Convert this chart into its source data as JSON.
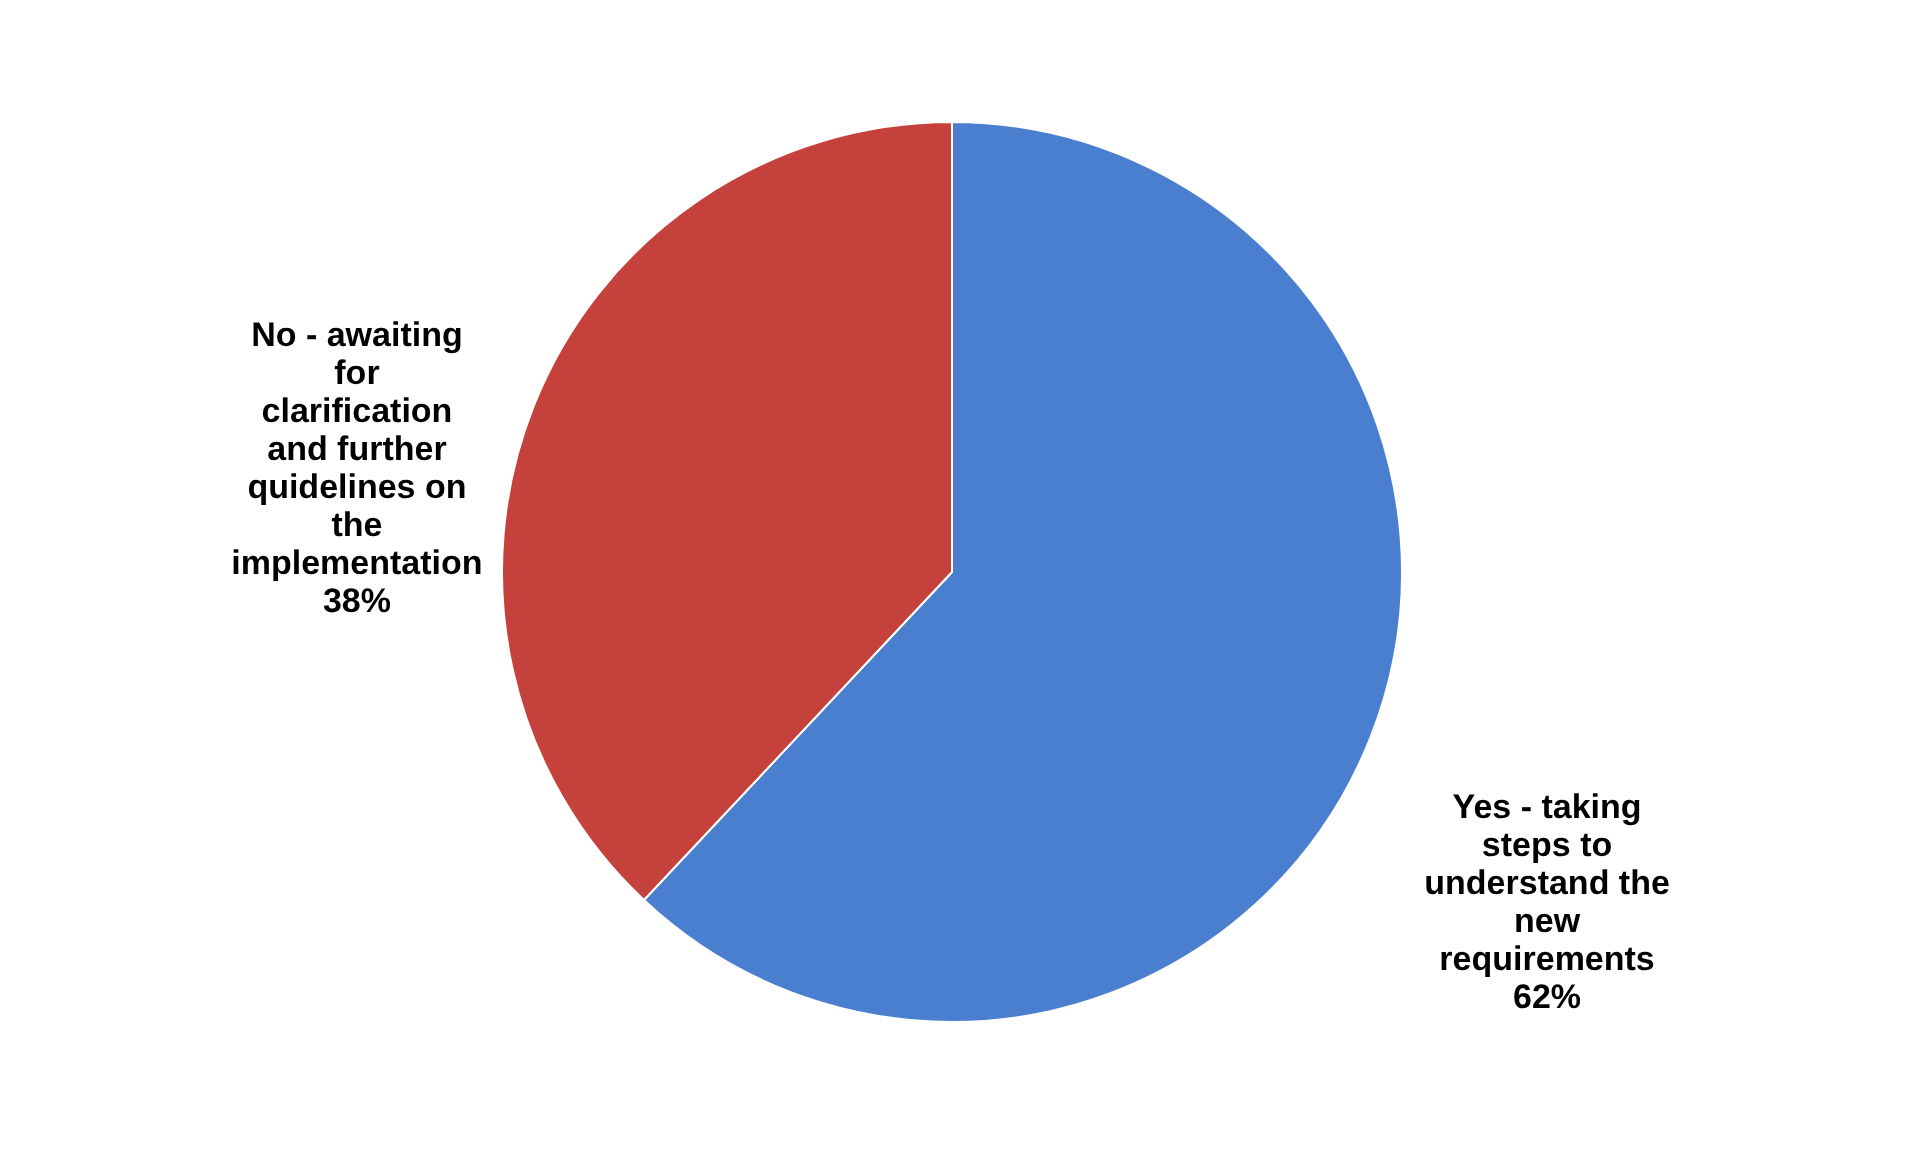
{
  "chart_data": {
    "type": "pie",
    "categories": [
      "Yes - taking steps to understand the new requirements",
      "No - awaiting for clarification and further quidelines on the implementation"
    ],
    "values": [
      62,
      38
    ],
    "colors": [
      "#4a7fd0",
      "#c4413c"
    ],
    "value_labels": [
      "62%",
      "38%"
    ]
  }
}
